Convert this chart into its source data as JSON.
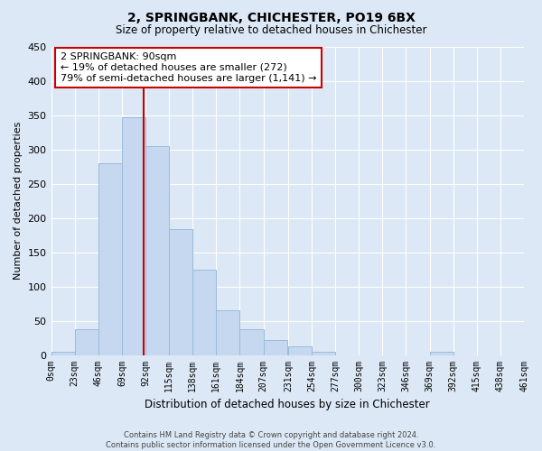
{
  "title": "2, SPRINGBANK, CHICHESTER, PO19 6BX",
  "subtitle": "Size of property relative to detached houses in Chichester",
  "xlabel": "Distribution of detached houses by size in Chichester",
  "ylabel": "Number of detached properties",
  "bin_edges": [
    0,
    23,
    46,
    69,
    92,
    115,
    138,
    161,
    184,
    207,
    231,
    254,
    277,
    300,
    323,
    346,
    369,
    392,
    415,
    438,
    461
  ],
  "bar_heights": [
    5,
    37,
    280,
    347,
    305,
    184,
    125,
    65,
    38,
    22,
    13,
    5,
    0,
    0,
    0,
    0,
    5,
    0,
    0,
    0
  ],
  "bar_color": "#c5d8ef",
  "bar_edgecolor": "#9bbbd8",
  "grid_color": "#ffffff",
  "background_color": "#dce8f5",
  "plot_bg_color": "#dce8f5",
  "property_size": 90,
  "vline_color": "#cc0000",
  "annotation_line1": "2 SPRINGBANK: 90sqm",
  "annotation_line2": "← 19% of detached houses are smaller (272)",
  "annotation_line3": "79% of semi-detached houses are larger (1,141) →",
  "annotation_box_edgecolor": "#cc0000",
  "annotation_box_facecolor": "#ffffff",
  "ylim": [
    0,
    450
  ],
  "yticks": [
    0,
    50,
    100,
    150,
    200,
    250,
    300,
    350,
    400,
    450
  ],
  "footer_line1": "Contains HM Land Registry data © Crown copyright and database right 2024.",
  "footer_line2": "Contains public sector information licensed under the Open Government Licence v3.0.",
  "tick_labels": [
    "0sqm",
    "23sqm",
    "46sqm",
    "69sqm",
    "92sqm",
    "115sqm",
    "138sqm",
    "161sqm",
    "184sqm",
    "207sqm",
    "231sqm",
    "254sqm",
    "277sqm",
    "300sqm",
    "323sqm",
    "346sqm",
    "369sqm",
    "392sqm",
    "415sqm",
    "438sqm",
    "461sqm"
  ],
  "title_fontsize": 10,
  "subtitle_fontsize": 8.5,
  "xlabel_fontsize": 8.5,
  "ylabel_fontsize": 8,
  "tick_fontsize": 7,
  "annotation_fontsize": 8,
  "footer_fontsize": 6
}
